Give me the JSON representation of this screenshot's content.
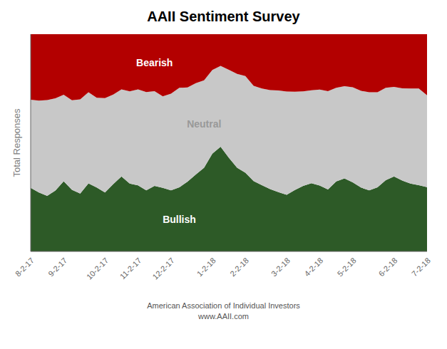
{
  "chart_data": {
    "type": "area",
    "stacked": true,
    "title": "AAII Sentiment Survey",
    "y_label": "Total Responses",
    "annotations": [
      "American Association of Individual Investors",
      "www.AAII.com"
    ],
    "categories": [
      "8-2-17",
      null,
      null,
      null,
      "9-2-17",
      null,
      null,
      null,
      null,
      "10-2-17",
      null,
      null,
      null,
      "11-2-17",
      null,
      null,
      null,
      "12-2-17",
      null,
      null,
      null,
      null,
      "1-2-18",
      null,
      null,
      null,
      "2-2-18",
      null,
      null,
      null,
      null,
      "3-2-18",
      null,
      null,
      null,
      "4-2-18",
      null,
      null,
      null,
      "5-2-18",
      null,
      null,
      null,
      null,
      "6-2-18",
      null,
      null,
      null,
      "7-2-18"
    ],
    "series": [
      {
        "name": "Bullish",
        "color": "#2d5a27",
        "values": [
          29.3,
          27.1,
          25.6,
          28.0,
          32.3,
          28.4,
          26.6,
          31.3,
          29.4,
          27.1,
          31.0,
          34.5,
          31.2,
          30.4,
          28.1,
          30.2,
          29.3,
          28.1,
          29.5,
          32.1,
          35.4,
          38.5,
          45.0,
          48.2,
          43.1,
          38.5,
          36.2,
          32.4,
          30.5,
          28.7,
          27.3,
          26.1,
          28.3,
          30.2,
          31.4,
          30.3,
          28.5,
          32.2,
          33.6,
          31.8,
          29.4,
          28.1,
          29.5,
          32.8,
          34.5,
          32.6,
          31.2,
          30.5,
          29.6
        ]
      },
      {
        "name": "Neutral",
        "color": "#c8c8c8",
        "values": [
          40.5,
          42.3,
          44.1,
          42.5,
          39.8,
          41.2,
          43.4,
          42.0,
          41.3,
          43.5,
          41.2,
          40.1,
          42.5,
          44.2,
          45.3,
          43.6,
          42.1,
          44.5,
          45.8,
          43.4,
          42.1,
          40.3,
          38.5,
          37.2,
          40.5,
          43.2,
          44.5,
          43.8,
          44.5,
          45.6,
          46.8,
          47.5,
          45.2,
          43.5,
          42.8,
          44.2,
          45.3,
          43.1,
          42.5,
          43.8,
          44.5,
          45.2,
          43.8,
          42.5,
          41.2,
          42.5,
          43.8,
          44.5,
          42.3
        ]
      },
      {
        "name": "Bearish",
        "color": "#b30000",
        "values": [
          30.2,
          30.6,
          30.3,
          29.5,
          27.9,
          30.4,
          30.0,
          26.7,
          29.3,
          29.4,
          27.8,
          25.4,
          26.3,
          25.4,
          26.6,
          26.2,
          28.6,
          27.4,
          24.7,
          24.5,
          22.5,
          21.2,
          16.5,
          14.6,
          16.4,
          18.3,
          19.3,
          23.8,
          25.0,
          25.7,
          25.9,
          26.4,
          26.5,
          26.3,
          25.8,
          25.5,
          26.2,
          24.7,
          23.9,
          24.4,
          26.1,
          26.7,
          26.7,
          24.7,
          24.3,
          24.9,
          25.0,
          25.0,
          28.1
        ]
      }
    ],
    "ylim": [
      0,
      100
    ],
    "tick_labels": "x",
    "grid": false
  }
}
